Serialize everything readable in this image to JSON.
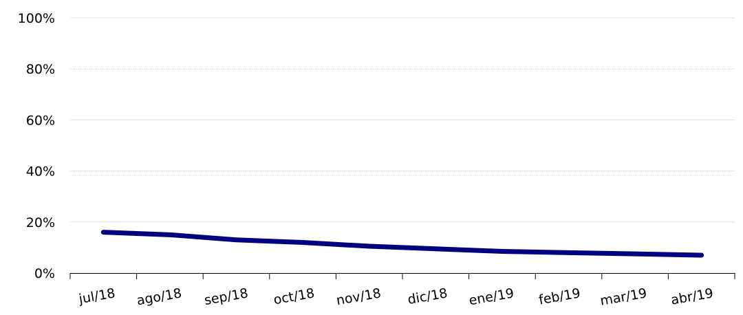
{
  "chart_data": {
    "type": "line",
    "title": "",
    "xlabel": "",
    "ylabel": "",
    "categories": [
      "jul/18",
      "ago/18",
      "sep/18",
      "oct/18",
      "nov/18",
      "dic/18",
      "ene/19",
      "feb/19",
      "mar/19",
      "abr/19"
    ],
    "y_ticks": [
      "0%",
      "20%",
      "40%",
      "60%",
      "80%",
      "100%"
    ],
    "ylim": [
      0,
      100
    ],
    "grid": true,
    "series": [
      {
        "color": "#000080",
        "values": [
          16,
          15,
          13,
          12,
          10.5,
          9.5,
          8.5,
          8,
          7.5,
          7
        ]
      }
    ]
  }
}
